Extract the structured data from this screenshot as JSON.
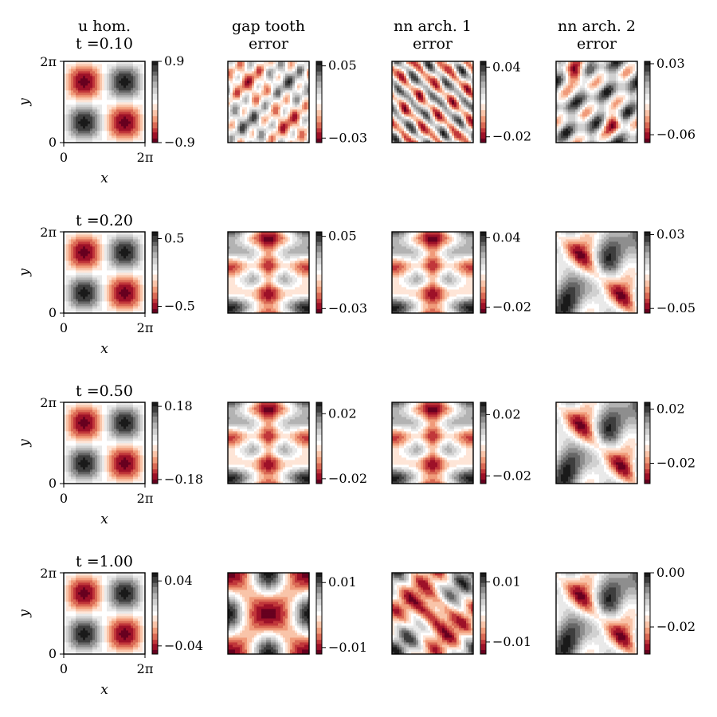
{
  "chart_data": {
    "type": "heatmap",
    "rows": [
      {
        "time_label": "t =0.10",
        "panels": [
          {
            "column": "u hom.",
            "vmin": -0.9,
            "vmax": 0.9,
            "cbar_ticks": [
              0.9,
              -0.9
            ],
            "pattern": "quad"
          },
          {
            "column": "gap tooth",
            "vmin": -0.035,
            "vmax": 0.055,
            "cbar_ticks": [
              0.05,
              -0.03
            ],
            "pattern": "noisy_x"
          },
          {
            "column": "nn arch. 1",
            "vmin": -0.025,
            "vmax": 0.045,
            "cbar_ticks": [
              0.04,
              -0.02
            ],
            "pattern": "stripes"
          },
          {
            "column": "nn arch. 2",
            "vmin": -0.07,
            "vmax": 0.033,
            "cbar_ticks": [
              0.03,
              -0.06
            ],
            "pattern": "anti_blobs"
          }
        ]
      },
      {
        "time_label": "t =0.20",
        "panels": [
          {
            "column": "u hom.",
            "vmin": -0.6,
            "vmax": 0.6,
            "cbar_ticks": [
              0.5,
              -0.5
            ],
            "pattern": "quad"
          },
          {
            "column": "gap tooth",
            "vmin": -0.035,
            "vmax": 0.055,
            "cbar_ticks": [
              0.05,
              -0.03
            ],
            "pattern": "center_vert"
          },
          {
            "column": "nn arch. 1",
            "vmin": -0.025,
            "vmax": 0.045,
            "cbar_ticks": [
              0.04,
              -0.02
            ],
            "pattern": "center_vert"
          },
          {
            "column": "nn arch. 2",
            "vmin": -0.055,
            "vmax": 0.033,
            "cbar_ticks": [
              0.03,
              -0.05
            ],
            "pattern": "anti_diag"
          }
        ]
      },
      {
        "time_label": "t =0.50",
        "panels": [
          {
            "column": "u hom.",
            "vmin": -0.2,
            "vmax": 0.2,
            "cbar_ticks": [
              0.18,
              -0.18
            ],
            "pattern": "quad"
          },
          {
            "column": "gap tooth",
            "vmin": -0.023,
            "vmax": 0.027,
            "cbar_ticks": [
              0.02,
              -0.02
            ],
            "pattern": "center_vert"
          },
          {
            "column": "nn arch. 1",
            "vmin": -0.025,
            "vmax": 0.028,
            "cbar_ticks": [
              0.02,
              -0.02
            ],
            "pattern": "center_vert"
          },
          {
            "column": "nn arch. 2",
            "vmin": -0.035,
            "vmax": 0.025,
            "cbar_ticks": [
              0.02,
              -0.02
            ],
            "pattern": "anti_diag"
          }
        ]
      },
      {
        "time_label": "t =1.00",
        "panels": [
          {
            "column": "u hom.",
            "vmin": -0.05,
            "vmax": 0.05,
            "cbar_ticks": [
              0.04,
              -0.04
            ],
            "pattern": "quad"
          },
          {
            "column": "gap tooth",
            "vmin": -0.012,
            "vmax": 0.013,
            "cbar_ticks": [
              0.01,
              -0.01
            ],
            "pattern": "center_round"
          },
          {
            "column": "nn arch. 1",
            "vmin": -0.014,
            "vmax": 0.013,
            "cbar_ticks": [
              0.01,
              -0.01
            ],
            "pattern": "center_diag"
          },
          {
            "column": "nn arch. 2",
            "vmin": -0.03,
            "vmax": 0.0,
            "cbar_ticks": [
              0.0,
              -0.02
            ],
            "pattern": "anti_diag"
          }
        ]
      }
    ],
    "column_headers": [
      [
        "u hom.",
        "t =0.10"
      ],
      [
        "gap tooth",
        "error"
      ],
      [
        "nn arch. 1",
        "error"
      ],
      [
        "nn arch. 2",
        "error"
      ]
    ],
    "colormap": [
      "#67001f",
      "#b2182b",
      "#d6604d",
      "#f4a582",
      "#fddbc7",
      "#ffffff",
      "#e0e0e0",
      "#bababa",
      "#878787",
      "#4d4d4d",
      "#1a1a1a"
    ],
    "x_ticks": [
      "0",
      "2π"
    ],
    "y_ticks": [
      "0",
      "2π"
    ],
    "xlabel": "x",
    "ylabel": "y"
  }
}
